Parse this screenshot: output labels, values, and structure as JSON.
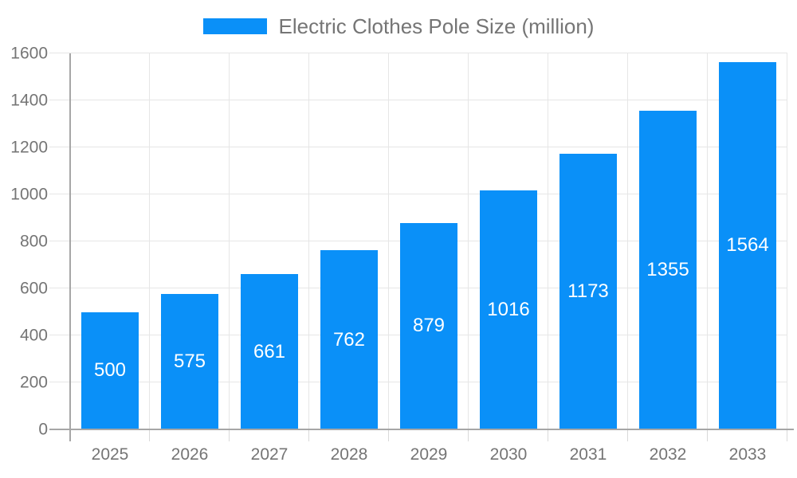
{
  "chart_data": {
    "type": "bar",
    "title": "Electric Clothes Pole Size (million)",
    "legend_entries": [
      "Electric Clothes Pole Size (million)"
    ],
    "legend_position": "top",
    "categories": [
      "2025",
      "2026",
      "2027",
      "2028",
      "2029",
      "2030",
      "2031",
      "2032",
      "2033"
    ],
    "series": [
      {
        "name": "Electric Clothes Pole Size (million)",
        "values": [
          500,
          575,
          661,
          762,
          879,
          1016,
          1173,
          1355,
          1564
        ]
      }
    ],
    "bar_labels_visible": true,
    "xlabel": "",
    "ylabel": "",
    "ylim": [
      0,
      1600
    ],
    "y_ticks": [
      0,
      200,
      400,
      600,
      800,
      1000,
      1200,
      1400,
      1600
    ],
    "grid": true,
    "colors": {
      "bar": "#0a90f8",
      "bar_label": "#ffffff",
      "axis_text": "#757575",
      "grid_line": "#e6e6e6",
      "axis_line": "#a6a6a6",
      "background": "#ffffff"
    }
  }
}
